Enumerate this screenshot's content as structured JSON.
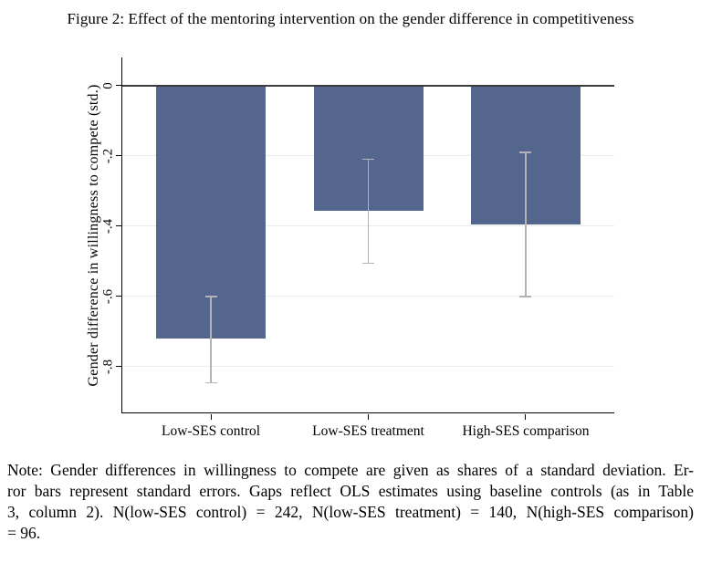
{
  "figure": {
    "title": "Figure 2: Effect of the mentoring intervention on the gender difference in competitiveness"
  },
  "chart_data": {
    "type": "bar",
    "title": "Figure 2: Effect of the mentoring intervention on the gender difference in competitiveness",
    "categories": [
      "Low-SES control",
      "Low-SES treatment",
      "High-SES comparison"
    ],
    "values": [
      -0.72,
      -0.355,
      -0.395
    ],
    "error_bars": [
      {
        "low": -0.845,
        "high": -0.6
      },
      {
        "low": -0.505,
        "high": -0.21
      },
      {
        "low": -0.6,
        "high": -0.19
      }
    ],
    "xlabel": "",
    "ylabel": "Gender difference in willingness to compete (std.)",
    "yticks": [
      0,
      -0.2,
      -0.4,
      -0.6,
      -0.8
    ],
    "ytick_labels": [
      "0",
      "-.2",
      "-.4",
      "-.6",
      "-.8"
    ],
    "ylim": [
      0.08,
      -0.93
    ],
    "grid": "horizontal",
    "legend_position": "none",
    "colors": {
      "bar": "#54668e",
      "error_bar": "#b3b3b3",
      "gridline": "#e7eaee",
      "zero_line": "#3c3c3c",
      "axis": "#000000"
    }
  },
  "note": {
    "lines": [
      "Note: Gender differences in willingness to compete are given as shares of a standard deviation. Er-",
      "ror bars represent standard errors. Gaps reflect OLS estimates using baseline controls (as in Table",
      "3, column 2). N(low-SES control) = 242, N(low-SES treatment) = 140, N(high-SES comparison)",
      "= 96."
    ]
  }
}
